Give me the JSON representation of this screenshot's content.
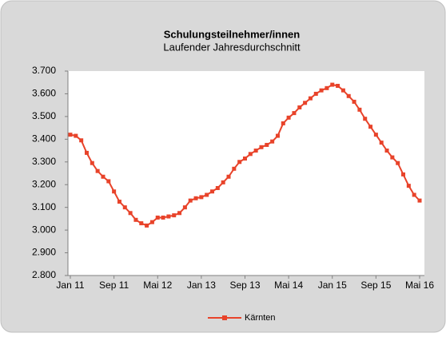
{
  "chart_data": {
    "type": "line",
    "title": "Schulungsteilnehmer/innen",
    "subtitle": "Laufender Jahresdurchschnitt",
    "categories": [
      "Jan 11",
      null,
      null,
      null,
      null,
      null,
      null,
      null,
      "Sep 11",
      null,
      null,
      null,
      null,
      null,
      null,
      null,
      "Mai 12",
      null,
      null,
      null,
      null,
      null,
      null,
      null,
      "Jan 13",
      null,
      null,
      null,
      null,
      null,
      null,
      null,
      "Sep 13",
      null,
      null,
      null,
      null,
      null,
      null,
      null,
      "Mai 14",
      null,
      null,
      null,
      null,
      null,
      null,
      null,
      "Jan 15",
      null,
      null,
      null,
      null,
      null,
      null,
      null,
      "Sep 15",
      null,
      null,
      null,
      null,
      null,
      null,
      null,
      "Mai 16"
    ],
    "series": [
      {
        "name": "Kärnten",
        "color": "#e8432a",
        "values": [
          3420,
          3415,
          3395,
          3340,
          3295,
          3260,
          3235,
          3215,
          3170,
          3125,
          3100,
          3075,
          3045,
          3030,
          3020,
          3035,
          3055,
          3055,
          3060,
          3065,
          3075,
          3100,
          3130,
          3140,
          3145,
          3155,
          3170,
          3185,
          3210,
          3235,
          3270,
          3300,
          3315,
          3335,
          3350,
          3365,
          3375,
          3390,
          3415,
          3470,
          3495,
          3515,
          3540,
          3560,
          3580,
          3600,
          3615,
          3625,
          3640,
          3635,
          3615,
          3590,
          3565,
          3530,
          3490,
          3455,
          3420,
          3385,
          3350,
          3320,
          3295,
          3245,
          3195,
          3155,
          3130
        ]
      }
    ],
    "ylim": [
      2800,
      3700
    ],
    "yticks": [
      {
        "value": 2800,
        "label": "2.800"
      },
      {
        "value": 2900,
        "label": "2.900"
      },
      {
        "value": 3000,
        "label": "3.000"
      },
      {
        "value": 3100,
        "label": "3.100"
      },
      {
        "value": 3200,
        "label": "3.200"
      },
      {
        "value": 3300,
        "label": "3.300"
      },
      {
        "value": 3400,
        "label": "3.400"
      },
      {
        "value": 3500,
        "label": "3.500"
      },
      {
        "value": 3600,
        "label": "3.600"
      },
      {
        "value": 3700,
        "label": "3.700"
      }
    ],
    "grid": false,
    "legend": "bottom"
  }
}
